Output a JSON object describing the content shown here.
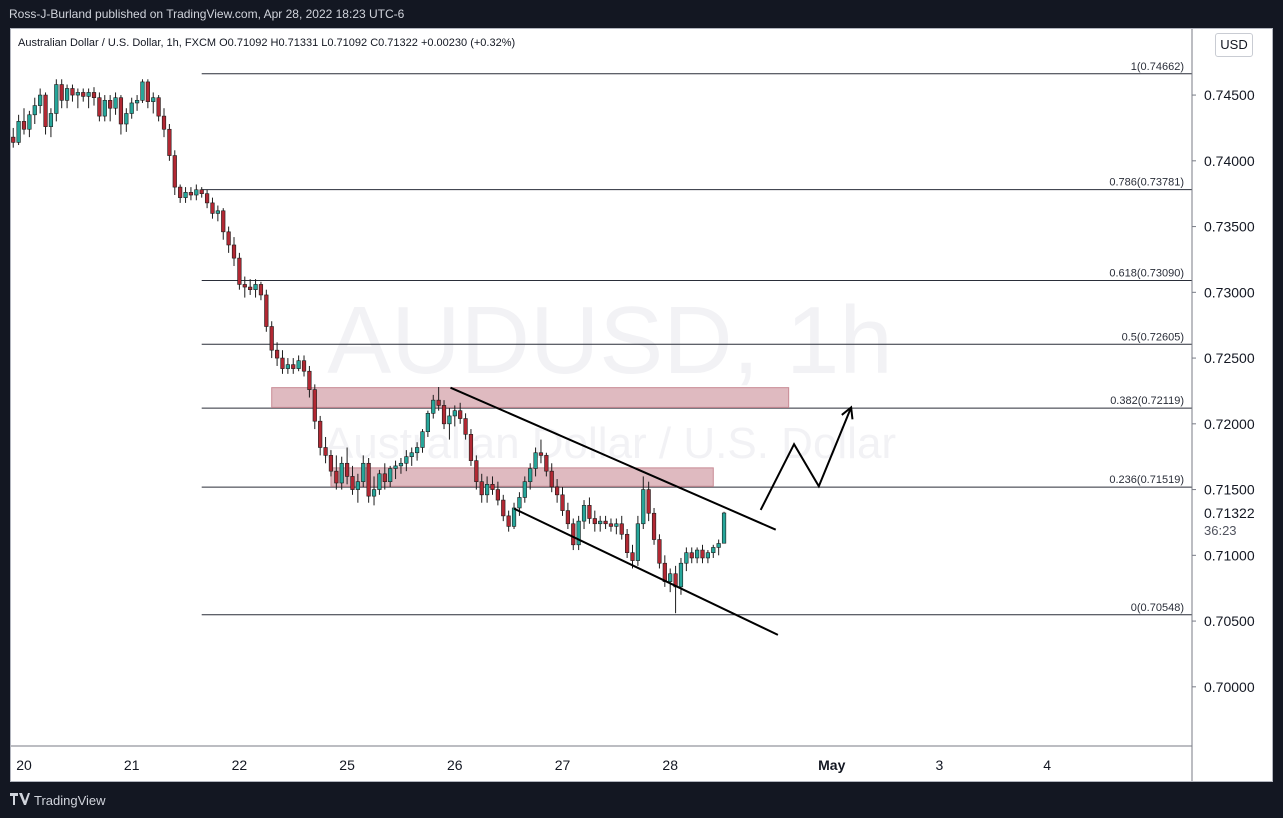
{
  "header": {
    "published_by": "Ross-J-Burland published on TradingView.com, Apr 28, 2022 18:23 UTC-6"
  },
  "legend": {
    "text": "Australian Dollar / U.S. Dollar, 1h, FXCM  O0.71092  H0.71331  L0.71092  C0.71322  +0.00230 (+0.32%)"
  },
  "watermark": {
    "symbol": "AUDUSD, 1h",
    "name": "Australian Dollar / U.S. Dollar"
  },
  "currency_button": "USD",
  "footer": {
    "brand": "TradingView"
  },
  "colors": {
    "background": "#ffffff",
    "up": "#26a69a",
    "down": "#b22833",
    "wick": "#1c1c1c",
    "zone": "#d4a3ab",
    "line": "#000000",
    "price_tag": "#26a69a"
  },
  "chart_data": {
    "type": "candlestick",
    "symbol": "AUDUSD",
    "interval": "1h",
    "yticks": [
      0.745,
      0.74,
      0.735,
      0.73,
      0.725,
      0.72,
      0.715,
      0.71,
      0.705,
      0.7
    ],
    "ytick_labels": [
      "0.74500",
      "0.74000",
      "0.73500",
      "0.73000",
      "0.72500",
      "0.72000",
      "0.71500",
      "0.71000",
      "0.70500",
      "0.70000"
    ],
    "ylim": [
      0.6955,
      0.7501
    ],
    "xticks": [
      {
        "label": "20",
        "pos": 0.0
      },
      {
        "label": "21",
        "pos": 1.0
      },
      {
        "label": "22",
        "pos": 2.0
      },
      {
        "label": "25",
        "pos": 3.0
      },
      {
        "label": "26",
        "pos": 4.0
      },
      {
        "label": "27",
        "pos": 5.0
      },
      {
        "label": "28",
        "pos": 6.0
      },
      {
        "label": "May",
        "pos": 7.5,
        "bold": true
      },
      {
        "label": "3",
        "pos": 8.5
      },
      {
        "label": "4",
        "pos": 9.5
      }
    ],
    "last_price": {
      "value": 0.71322,
      "label": "0.71322",
      "countdown": "36:23"
    },
    "fib_levels": [
      {
        "ratio": "1",
        "price": 0.74662,
        "label": "1(0.74662)"
      },
      {
        "ratio": "0.786",
        "price": 0.73781,
        "label": "0.786(0.73781)"
      },
      {
        "ratio": "0.618",
        "price": 0.7309,
        "label": "0.618(0.73090)"
      },
      {
        "ratio": "0.5",
        "price": 0.72605,
        "label": "0.5(0.72605)"
      },
      {
        "ratio": "0.382",
        "price": 0.72119,
        "label": "0.382(0.72119)"
      },
      {
        "ratio": "0.236",
        "price": 0.71519,
        "label": "0.236(0.71519)"
      },
      {
        "ratio": "0",
        "price": 0.70548,
        "label": "0(0.70548)"
      }
    ],
    "fib_start_day": 1.65,
    "zones": [
      {
        "x0": 2.3,
        "x1": 7.1,
        "y0": 0.72125,
        "y1": 0.72275
      },
      {
        "x0": 2.85,
        "x1": 6.4,
        "y0": 0.71525,
        "y1": 0.71665
      }
    ],
    "channel_lines": [
      {
        "x0": 3.96,
        "y0": 0.72275,
        "x1": 6.98,
        "y1": 0.71195
      },
      {
        "x0": 4.55,
        "y0": 0.71355,
        "x1": 7.0,
        "y1": 0.70395
      }
    ],
    "projection_path": [
      {
        "x": 6.84,
        "y": 0.71345
      },
      {
        "x": 7.15,
        "y": 0.71845
      },
      {
        "x": 7.38,
        "y": 0.71525
      },
      {
        "x": 7.68,
        "y": 0.72125
      }
    ],
    "candles_note": "approximate hourly OHLC read from chart; x in trading-day units (20=0)",
    "candles": [
      [
        -0.1,
        0.7418,
        0.7425,
        0.741,
        0.7414
      ],
      [
        -0.05,
        0.7414,
        0.7435,
        0.7412,
        0.743
      ],
      [
        0.0,
        0.743,
        0.744,
        0.742,
        0.7424
      ],
      [
        0.05,
        0.7424,
        0.7438,
        0.7418,
        0.7435
      ],
      [
        0.1,
        0.7435,
        0.7448,
        0.7428,
        0.7442
      ],
      [
        0.15,
        0.7442,
        0.7455,
        0.7436,
        0.745
      ],
      [
        0.2,
        0.745,
        0.7452,
        0.742,
        0.7426
      ],
      [
        0.25,
        0.7426,
        0.744,
        0.7418,
        0.7436
      ],
      [
        0.3,
        0.7436,
        0.7462,
        0.743,
        0.7458
      ],
      [
        0.35,
        0.7458,
        0.7462,
        0.744,
        0.7446
      ],
      [
        0.4,
        0.7446,
        0.7458,
        0.744,
        0.7455
      ],
      [
        0.45,
        0.7455,
        0.7458,
        0.7445,
        0.745
      ],
      [
        0.5,
        0.745,
        0.7455,
        0.744,
        0.7452
      ],
      [
        0.55,
        0.7452,
        0.7455,
        0.7445,
        0.7449
      ],
      [
        0.6,
        0.7449,
        0.7455,
        0.744,
        0.7452
      ],
      [
        0.65,
        0.7452,
        0.7456,
        0.7442,
        0.7448
      ],
      [
        0.7,
        0.7448,
        0.7452,
        0.743,
        0.7434
      ],
      [
        0.75,
        0.7434,
        0.745,
        0.743,
        0.7446
      ],
      [
        0.8,
        0.7446,
        0.745,
        0.743,
        0.744
      ],
      [
        0.85,
        0.744,
        0.7452,
        0.7435,
        0.7448
      ],
      [
        0.9,
        0.7448,
        0.745,
        0.742,
        0.7428
      ],
      [
        0.95,
        0.7428,
        0.744,
        0.7422,
        0.7436
      ],
      [
        1.0,
        0.7436,
        0.7448,
        0.7432,
        0.7444
      ],
      [
        1.05,
        0.7444,
        0.745,
        0.7438,
        0.7446
      ],
      [
        1.1,
        0.7446,
        0.7462,
        0.7444,
        0.746
      ],
      [
        1.15,
        0.746,
        0.7462,
        0.744,
        0.7445
      ],
      [
        1.2,
        0.7445,
        0.7452,
        0.7436,
        0.7448
      ],
      [
        1.25,
        0.7448,
        0.745,
        0.743,
        0.7434
      ],
      [
        1.3,
        0.7434,
        0.744,
        0.7418,
        0.7424
      ],
      [
        1.35,
        0.7424,
        0.7428,
        0.74,
        0.7404
      ],
      [
        1.4,
        0.7404,
        0.7408,
        0.7374,
        0.738
      ],
      [
        1.45,
        0.738,
        0.7382,
        0.7368,
        0.7372
      ],
      [
        1.5,
        0.7372,
        0.738,
        0.7368,
        0.7376
      ],
      [
        1.55,
        0.7376,
        0.738,
        0.737,
        0.7374
      ],
      [
        1.6,
        0.7374,
        0.7382,
        0.737,
        0.7378
      ],
      [
        1.65,
        0.7378,
        0.738,
        0.7372,
        0.7375
      ],
      [
        1.7,
        0.7375,
        0.7378,
        0.7364,
        0.7368
      ],
      [
        1.75,
        0.7368,
        0.7372,
        0.7356,
        0.736
      ],
      [
        1.8,
        0.736,
        0.7366,
        0.7354,
        0.7362
      ],
      [
        1.85,
        0.7362,
        0.7364,
        0.734,
        0.7346
      ],
      [
        1.9,
        0.7346,
        0.735,
        0.733,
        0.7336
      ],
      [
        1.95,
        0.7336,
        0.7342,
        0.732,
        0.7326
      ],
      [
        2.0,
        0.7326,
        0.733,
        0.7302,
        0.7306
      ],
      [
        2.05,
        0.7306,
        0.7312,
        0.7296,
        0.7304
      ],
      [
        2.1,
        0.7304,
        0.731,
        0.7298,
        0.7302
      ],
      [
        2.15,
        0.7302,
        0.731,
        0.7296,
        0.7306
      ],
      [
        2.2,
        0.7306,
        0.7308,
        0.7294,
        0.7298
      ],
      [
        2.25,
        0.7298,
        0.7302,
        0.727,
        0.7274
      ],
      [
        2.3,
        0.7274,
        0.7278,
        0.725,
        0.7256
      ],
      [
        2.35,
        0.7256,
        0.7262,
        0.7244,
        0.725
      ],
      [
        2.4,
        0.725,
        0.7256,
        0.7238,
        0.7242
      ],
      [
        2.45,
        0.7242,
        0.725,
        0.7238,
        0.7245
      ],
      [
        2.5,
        0.7245,
        0.725,
        0.7238,
        0.7242
      ],
      [
        2.55,
        0.7242,
        0.7252,
        0.724,
        0.7248
      ],
      [
        2.6,
        0.7248,
        0.7252,
        0.7236,
        0.724
      ],
      [
        2.65,
        0.724,
        0.7244,
        0.722,
        0.7226
      ],
      [
        2.7,
        0.7226,
        0.723,
        0.7196,
        0.7202
      ],
      [
        2.75,
        0.7202,
        0.7206,
        0.7176,
        0.7182
      ],
      [
        2.8,
        0.7182,
        0.719,
        0.717,
        0.7176
      ],
      [
        2.85,
        0.7176,
        0.718,
        0.716,
        0.7164
      ],
      [
        2.9,
        0.7164,
        0.7176,
        0.715,
        0.7155
      ],
      [
        2.95,
        0.7155,
        0.7175,
        0.715,
        0.717
      ],
      [
        3.0,
        0.717,
        0.7182,
        0.7154,
        0.716
      ],
      [
        3.05,
        0.716,
        0.7168,
        0.7146,
        0.715
      ],
      [
        3.1,
        0.715,
        0.7162,
        0.714,
        0.7156
      ],
      [
        3.15,
        0.7156,
        0.7176,
        0.7152,
        0.717
      ],
      [
        3.2,
        0.717,
        0.7174,
        0.714,
        0.7145
      ],
      [
        3.25,
        0.7145,
        0.716,
        0.7138,
        0.715
      ],
      [
        3.3,
        0.715,
        0.7165,
        0.7146,
        0.7162
      ],
      [
        3.35,
        0.7162,
        0.717,
        0.715,
        0.7156
      ],
      [
        3.4,
        0.7156,
        0.7168,
        0.7152,
        0.7166
      ],
      [
        3.45,
        0.7166,
        0.7172,
        0.7158,
        0.7168
      ],
      [
        3.5,
        0.7168,
        0.7174,
        0.7162,
        0.717
      ],
      [
        3.55,
        0.717,
        0.718,
        0.7164,
        0.7175
      ],
      [
        3.6,
        0.7175,
        0.7182,
        0.7168,
        0.7178
      ],
      [
        3.65,
        0.7178,
        0.7186,
        0.7172,
        0.7182
      ],
      [
        3.7,
        0.7182,
        0.7196,
        0.7178,
        0.7194
      ],
      [
        3.75,
        0.7194,
        0.721,
        0.719,
        0.7208
      ],
      [
        3.8,
        0.7208,
        0.7222,
        0.7204,
        0.7218
      ],
      [
        3.85,
        0.7218,
        0.7228,
        0.721,
        0.7214
      ],
      [
        3.9,
        0.7214,
        0.7218,
        0.7196,
        0.72
      ],
      [
        3.95,
        0.72,
        0.7212,
        0.7188,
        0.7206
      ],
      [
        4.0,
        0.7206,
        0.7214,
        0.7198,
        0.721
      ],
      [
        4.05,
        0.721,
        0.7216,
        0.72,
        0.7204
      ],
      [
        4.1,
        0.7204,
        0.7208,
        0.7188,
        0.7192
      ],
      [
        4.15,
        0.7192,
        0.7196,
        0.7168,
        0.7172
      ],
      [
        4.2,
        0.7172,
        0.7176,
        0.715,
        0.7156
      ],
      [
        4.25,
        0.7156,
        0.7162,
        0.714,
        0.7146
      ],
      [
        4.3,
        0.7146,
        0.716,
        0.714,
        0.7154
      ],
      [
        4.35,
        0.7154,
        0.716,
        0.7146,
        0.715
      ],
      [
        4.4,
        0.715,
        0.7156,
        0.7138,
        0.7142
      ],
      [
        4.45,
        0.7142,
        0.7146,
        0.7126,
        0.713
      ],
      [
        4.5,
        0.713,
        0.7134,
        0.7118,
        0.7122
      ],
      [
        4.55,
        0.7122,
        0.714,
        0.712,
        0.7136
      ],
      [
        4.6,
        0.7136,
        0.7148,
        0.713,
        0.7144
      ],
      [
        4.65,
        0.7144,
        0.716,
        0.714,
        0.7156
      ],
      [
        4.7,
        0.7156,
        0.717,
        0.715,
        0.7166
      ],
      [
        4.75,
        0.7166,
        0.7182,
        0.716,
        0.7178
      ],
      [
        4.8,
        0.7178,
        0.7188,
        0.717,
        0.7176
      ],
      [
        4.85,
        0.7176,
        0.7178,
        0.716,
        0.7164
      ],
      [
        4.9,
        0.7164,
        0.717,
        0.7148,
        0.7152
      ],
      [
        4.95,
        0.7152,
        0.7158,
        0.714,
        0.7146
      ],
      [
        5.0,
        0.7146,
        0.7152,
        0.713,
        0.7134
      ],
      [
        5.05,
        0.7134,
        0.714,
        0.712,
        0.7124
      ],
      [
        5.1,
        0.7124,
        0.7128,
        0.7104,
        0.7108
      ],
      [
        5.15,
        0.7108,
        0.713,
        0.7104,
        0.7126
      ],
      [
        5.2,
        0.7126,
        0.7142,
        0.712,
        0.7138
      ],
      [
        5.25,
        0.7138,
        0.7144,
        0.7124,
        0.7128
      ],
      [
        5.3,
        0.7128,
        0.7134,
        0.7118,
        0.7124
      ],
      [
        5.35,
        0.7124,
        0.713,
        0.7118,
        0.7126
      ],
      [
        5.4,
        0.7126,
        0.713,
        0.712,
        0.7124
      ],
      [
        5.45,
        0.7124,
        0.7128,
        0.7118,
        0.7122
      ],
      [
        5.5,
        0.7122,
        0.7128,
        0.7116,
        0.7124
      ],
      [
        5.55,
        0.7124,
        0.713,
        0.7112,
        0.7116
      ],
      [
        5.6,
        0.7116,
        0.712,
        0.7098,
        0.7102
      ],
      [
        5.65,
        0.7102,
        0.7108,
        0.709,
        0.7096
      ],
      [
        5.7,
        0.7096,
        0.713,
        0.7092,
        0.7124
      ],
      [
        5.75,
        0.7124,
        0.716,
        0.712,
        0.715
      ],
      [
        5.8,
        0.715,
        0.7156,
        0.7126,
        0.7132
      ],
      [
        5.85,
        0.7132,
        0.7136,
        0.7108,
        0.7112
      ],
      [
        5.9,
        0.7112,
        0.7116,
        0.709,
        0.7094
      ],
      [
        5.95,
        0.7094,
        0.71,
        0.7076,
        0.708
      ],
      [
        6.0,
        0.708,
        0.709,
        0.7072,
        0.7086
      ],
      [
        6.05,
        0.7086,
        0.7092,
        0.7056,
        0.7076
      ],
      [
        6.1,
        0.7076,
        0.7098,
        0.707,
        0.7094
      ],
      [
        6.15,
        0.7094,
        0.7106,
        0.7088,
        0.7102
      ],
      [
        6.2,
        0.7102,
        0.7106,
        0.7094,
        0.7098
      ],
      [
        6.25,
        0.7098,
        0.7106,
        0.7094,
        0.7104
      ],
      [
        6.3,
        0.7104,
        0.7108,
        0.7094,
        0.7098
      ],
      [
        6.35,
        0.7098,
        0.7104,
        0.7094,
        0.7102
      ],
      [
        6.4,
        0.7102,
        0.7108,
        0.7098,
        0.7106
      ],
      [
        6.45,
        0.7106,
        0.7112,
        0.71,
        0.7109
      ],
      [
        6.5,
        0.71092,
        0.71331,
        0.71092,
        0.71322
      ]
    ]
  }
}
